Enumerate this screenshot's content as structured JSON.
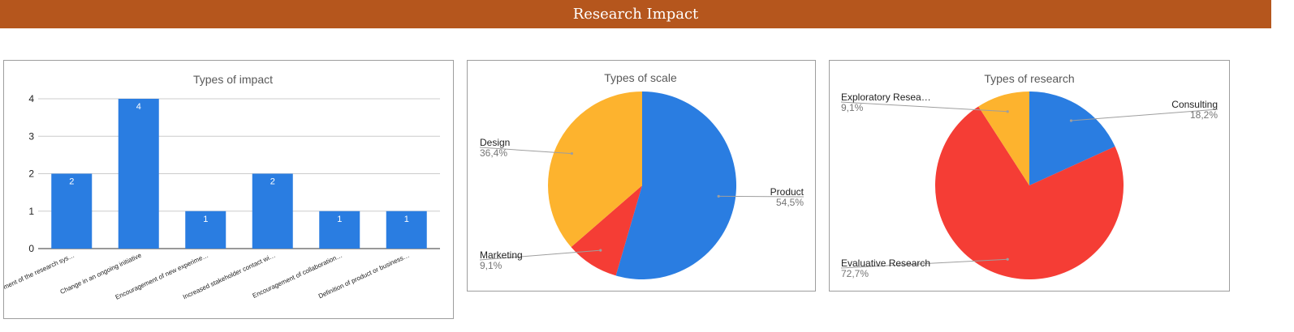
{
  "header": {
    "title": "Research Impact",
    "color": "#b5561d"
  },
  "chart_data": [
    {
      "type": "bar",
      "title": "Types of impact",
      "categories": [
        "Development of the research sys…",
        "Change in an ongoing initiative",
        "Encouragement of new experime…",
        "Increased stakeholder contact wi…",
        "Encouragement of collaboration…",
        "Definition of product or business…"
      ],
      "category_labels_shown": [
        "velopment of the research sys…",
        "Change in an ongoing initiative",
        "Encouragement of new experime…",
        "Increased stakeholder contact wi…",
        "Encouragement of collaboration…",
        "Definition of product or business…"
      ],
      "values": [
        2,
        4,
        1,
        2,
        1,
        1
      ],
      "data_labels": [
        "2",
        "4",
        "1",
        "2",
        "1",
        "1"
      ],
      "yticks": [
        "0",
        "1",
        "2",
        "3",
        "4"
      ],
      "ylim": [
        0,
        4
      ],
      "grid": true,
      "color": "#2a7de1"
    },
    {
      "type": "pie",
      "title": "Types of scale",
      "slices": [
        {
          "name": "Product",
          "value": 54.5,
          "label": "54,5%",
          "color": "#2a7de1"
        },
        {
          "name": "Marketing",
          "value": 9.1,
          "label": "9,1%",
          "color": "#f53d35"
        },
        {
          "name": "Design",
          "value": 36.4,
          "label": "36,4%",
          "color": "#fdb32e"
        }
      ]
    },
    {
      "type": "pie",
      "title": "Types of research",
      "slices": [
        {
          "name": "Consulting",
          "value": 18.2,
          "label": "18,2%",
          "color": "#2a7de1"
        },
        {
          "name": "Evaluative Research",
          "value": 72.7,
          "label": "72,7%",
          "color": "#f53d35"
        },
        {
          "name": "Exploratory Resea…",
          "value": 9.1,
          "label": "9,1%",
          "color": "#fdb32e"
        }
      ]
    }
  ]
}
